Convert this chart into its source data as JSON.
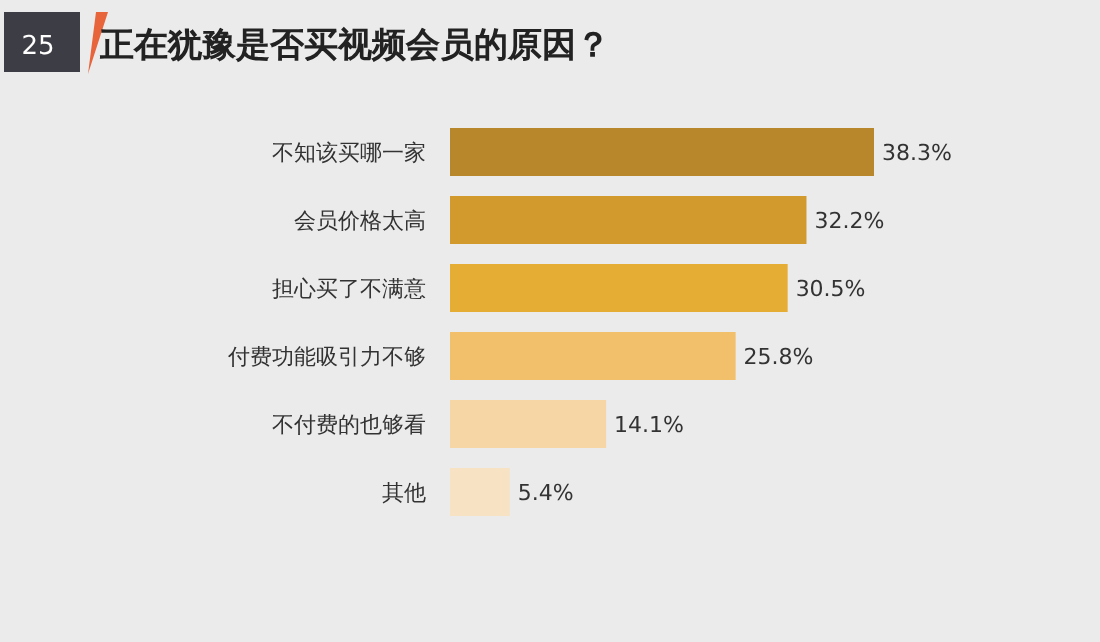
{
  "chart_data": {
    "type": "bar",
    "orientation": "horizontal",
    "title": "正在犹豫是否买视频会员的原因？",
    "annotations": [
      "25"
    ],
    "categories": [
      "不知该买哪一家",
      "会员价格太高",
      "担心买了不满意",
      "付费功能吸引力不够",
      "不付费的也够看",
      "其他"
    ],
    "values": [
      38.3,
      32.2,
      30.5,
      25.8,
      14.1,
      5.4
    ],
    "value_labels": [
      "38.3%",
      "32.2%",
      "30.5%",
      "25.8%",
      "14.1%",
      "5.4%"
    ],
    "colors": [
      "#b8872b",
      "#d29a2c",
      "#e6ad35",
      "#f2c06a",
      "#f6d6a4",
      "#f8e2c4"
    ]
  }
}
